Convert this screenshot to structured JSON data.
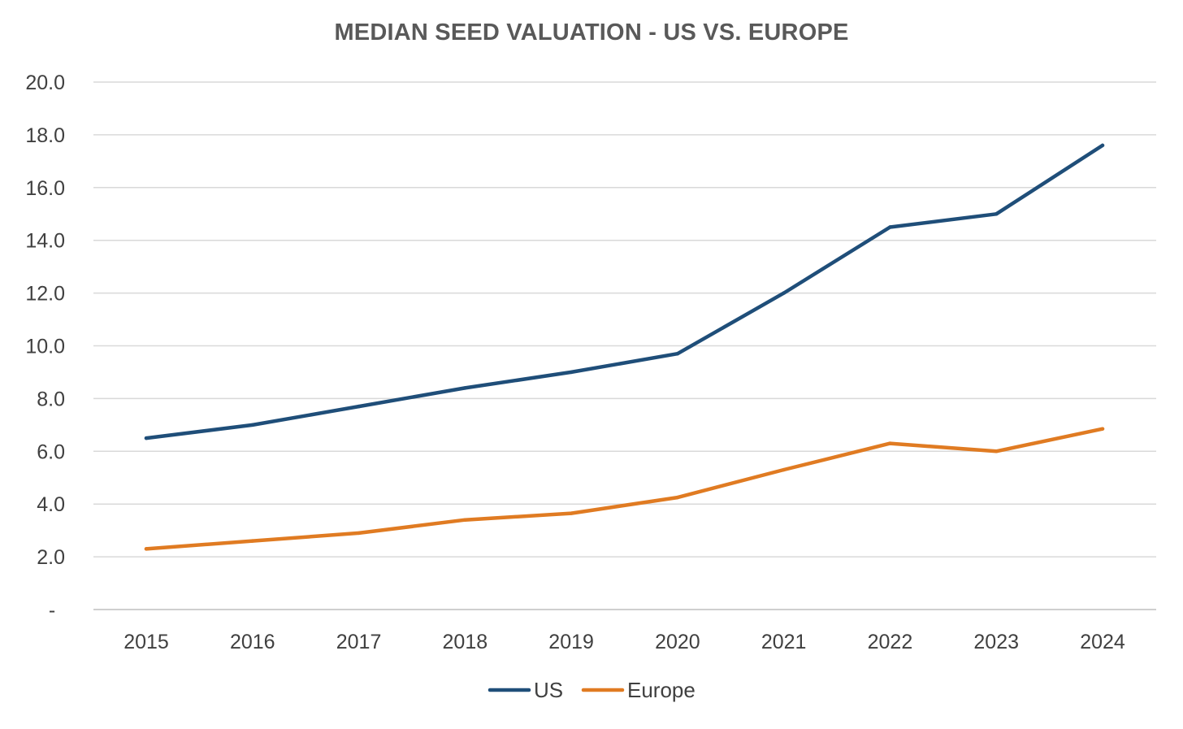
{
  "chart_data": {
    "type": "line",
    "title": "MEDIAN SEED VALUATION - US VS. EUROPE",
    "xlabel": "",
    "ylabel": "",
    "categories": [
      "2015",
      "2016",
      "2017",
      "2018",
      "2019",
      "2020",
      "2021",
      "2022",
      "2023",
      "2024"
    ],
    "series": [
      {
        "name": "US",
        "color": "#1f4e79",
        "values": [
          6.5,
          7.0,
          7.7,
          8.4,
          9.0,
          9.7,
          12.0,
          14.5,
          15.0,
          17.6
        ]
      },
      {
        "name": "Europe",
        "color": "#e07b22",
        "values": [
          2.3,
          2.6,
          2.9,
          3.4,
          3.65,
          4.25,
          5.3,
          6.3,
          6.0,
          6.85
        ]
      }
    ],
    "ylim": [
      0,
      20
    ],
    "y_ticks": [
      "-",
      "2.0",
      "4.0",
      "6.0",
      "8.0",
      "10.0",
      "12.0",
      "14.0",
      "16.0",
      "18.0",
      "20.0"
    ],
    "grid": true,
    "legend_position": "bottom"
  }
}
